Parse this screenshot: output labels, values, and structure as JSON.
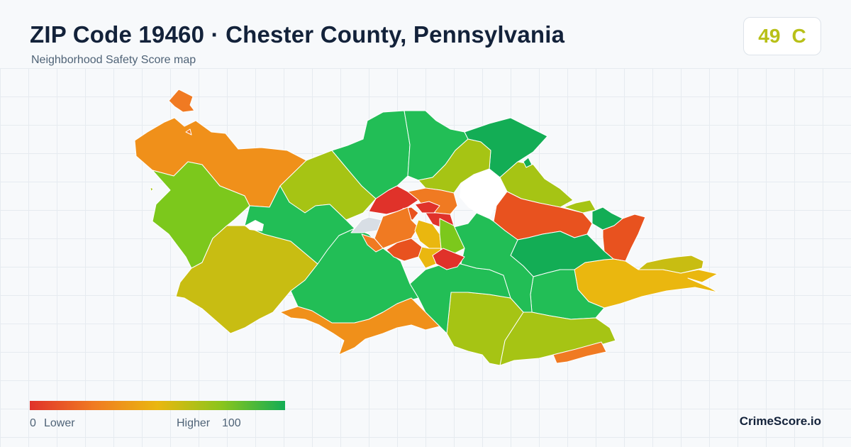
{
  "header": {
    "title": "ZIP Code 19460 · Chester County, Pennsylvania",
    "subtitle": "Neighborhood Safety Score map"
  },
  "score": {
    "value": "49",
    "grade": "C",
    "color": "#b8c018"
  },
  "legend": {
    "min": "0",
    "low_label": "Lower",
    "high_label": "Higher",
    "max": "100"
  },
  "brand": "CrimeScore.io",
  "colors": {
    "red": "#e0322a",
    "red_orange": "#e8521f",
    "orange": "#f07a22",
    "orange_amber": "#f0901a",
    "amber": "#eab70f",
    "olive": "#c8bd12",
    "yellow_green": "#a6c414",
    "light_green": "#7cc81c",
    "green": "#22be56",
    "dark_green": "#13ad55",
    "no_data": "#d8dee5"
  }
}
